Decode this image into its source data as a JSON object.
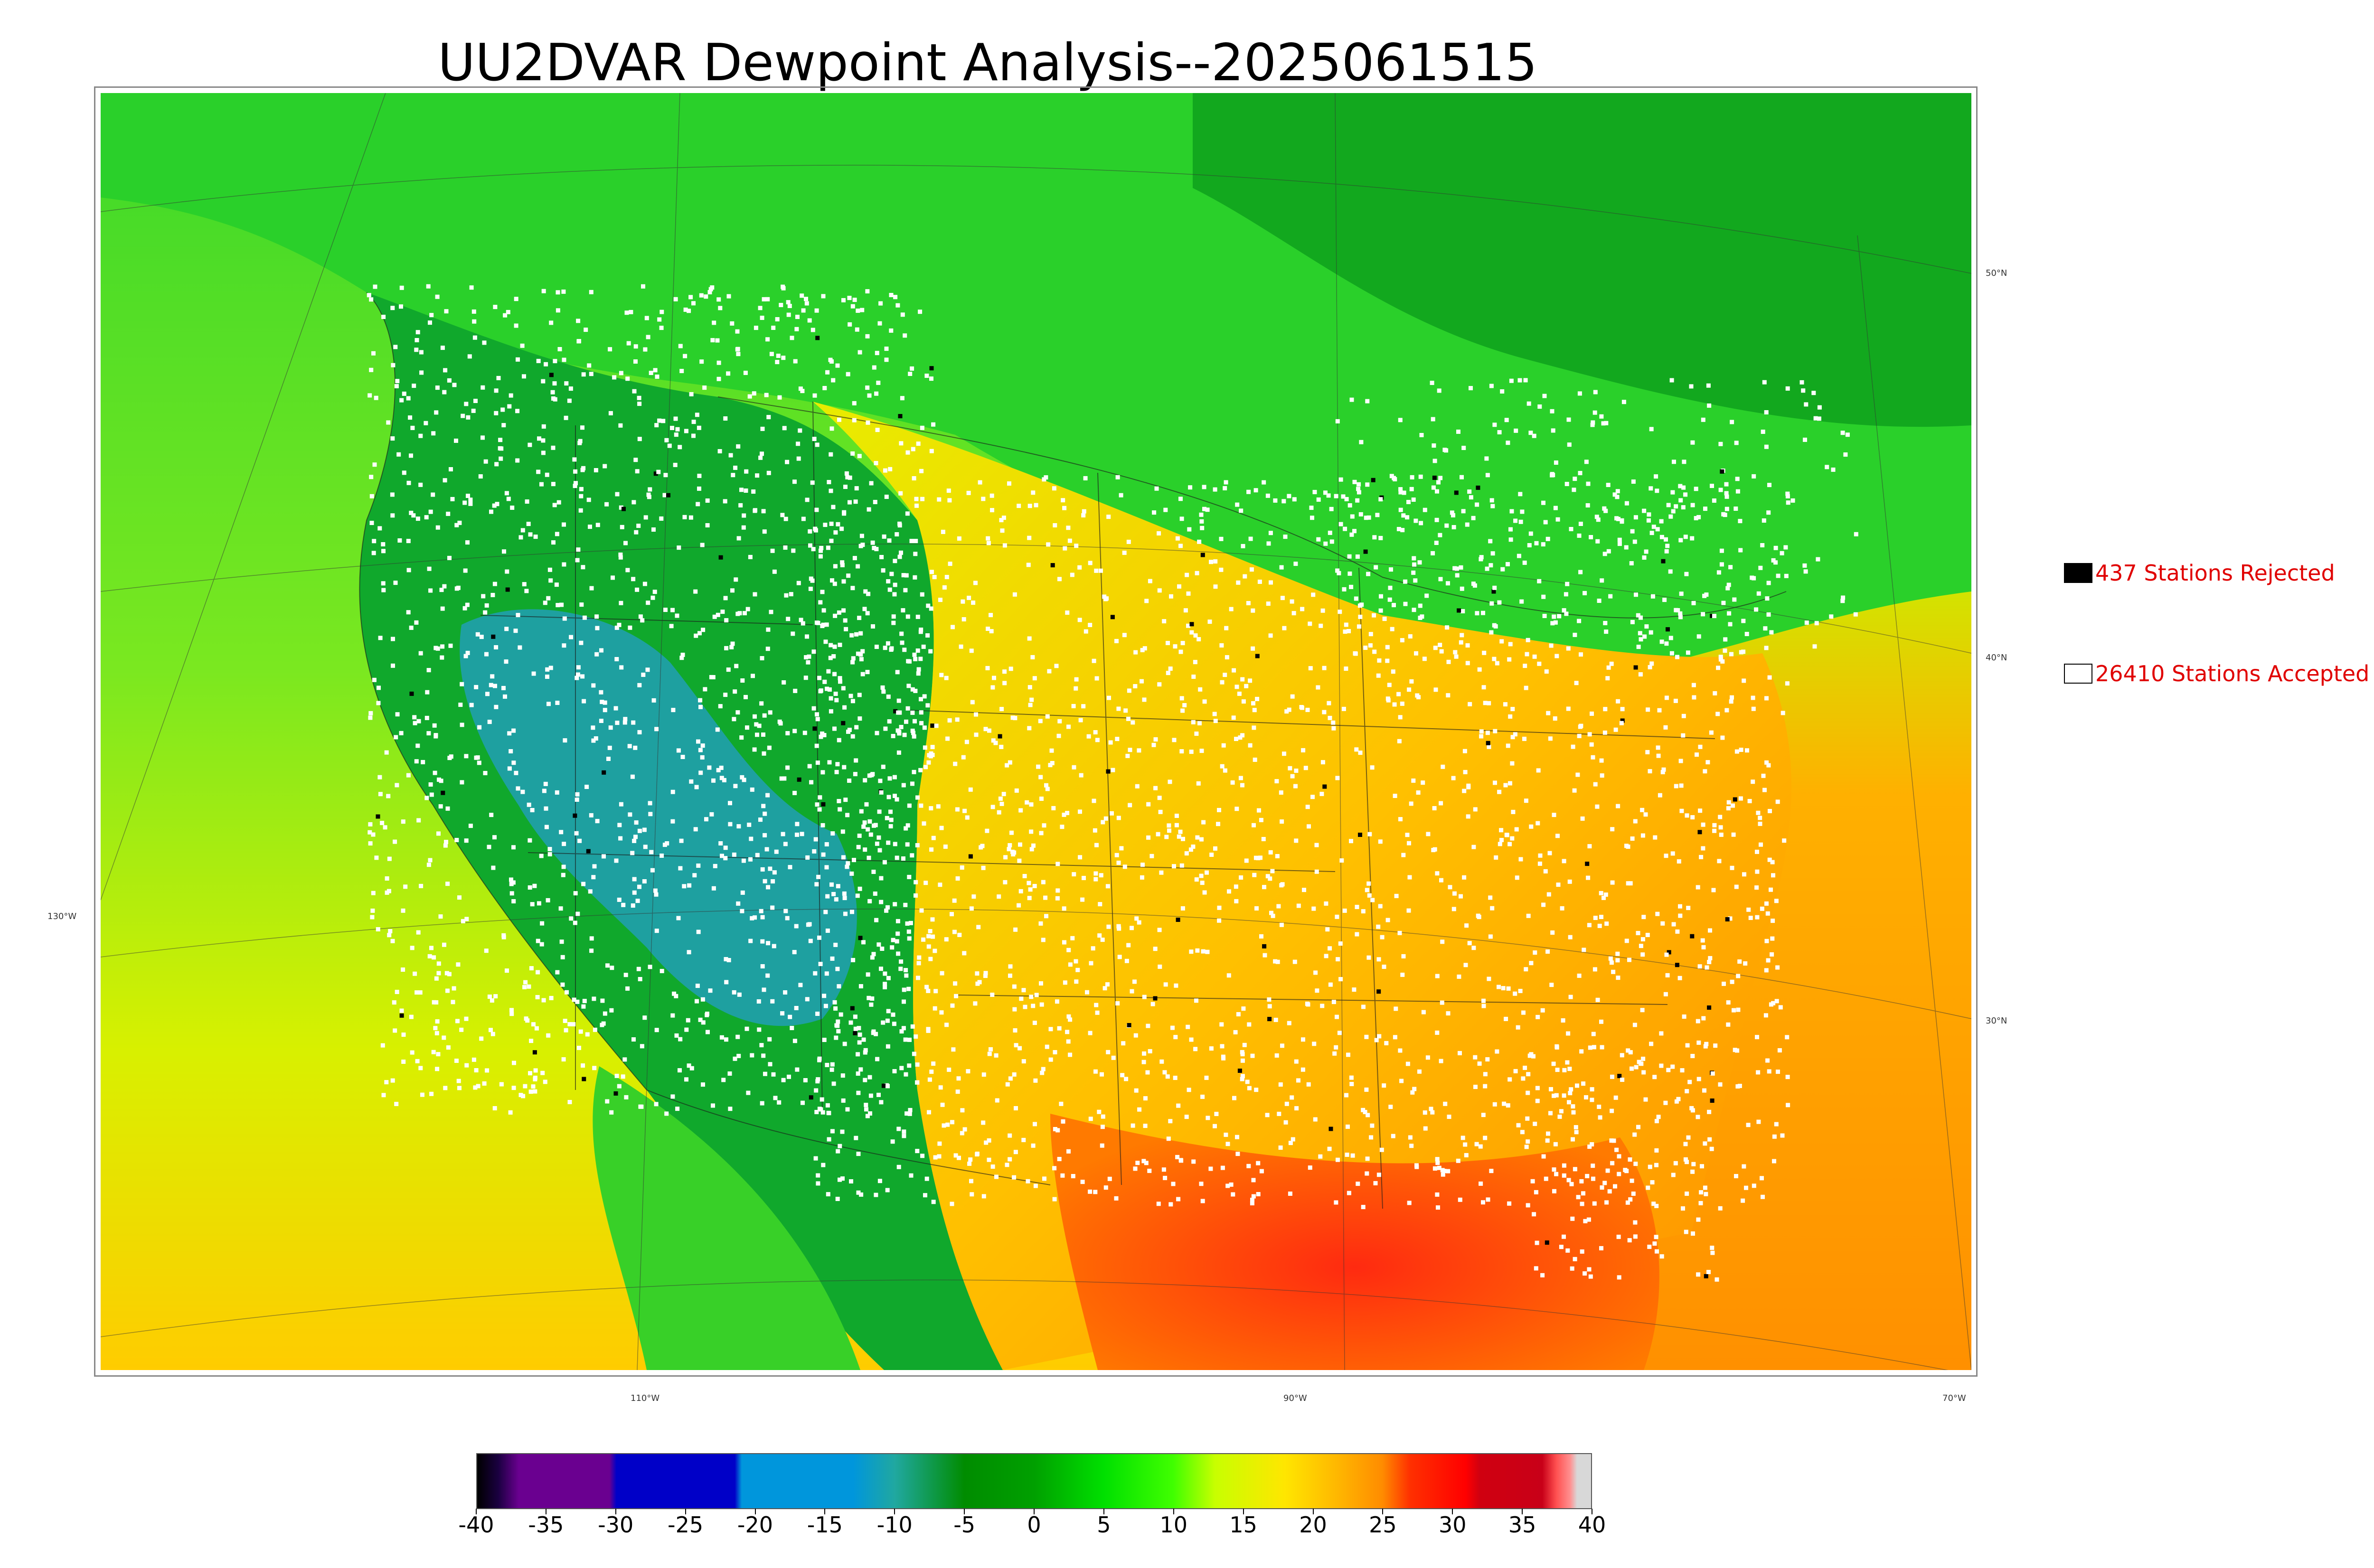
{
  "title": "UU2DVAR Dewpoint Analysis--2025061515",
  "legend": {
    "rejected_label": "437 Stations Rejected",
    "accepted_label": "26410 Stations Accepted",
    "rejected_color": "#000000",
    "accepted_color": "#ffffff",
    "label_color": "#e00000"
  },
  "graticule": {
    "lat_labels": [
      "50°N",
      "40°N",
      "30°N",
      "130°W"
    ],
    "lon_labels": [
      "110°W",
      "90°W",
      "70°W"
    ]
  },
  "colorbar": {
    "tick_labels": [
      "-40",
      "-35",
      "-30",
      "-25",
      "-20",
      "-15",
      "-10",
      "-5",
      "0",
      "5",
      "10",
      "15",
      "20",
      "25",
      "30",
      "35",
      "40"
    ],
    "range": [
      -40,
      40
    ],
    "stops": [
      {
        "v": -40,
        "c": "#000000"
      },
      {
        "v": -38.5,
        "c": "#1a0040"
      },
      {
        "v": -37,
        "c": "#6a0090"
      },
      {
        "v": -30.5,
        "c": "#6a0090"
      },
      {
        "v": -30,
        "c": "#0000c8"
      },
      {
        "v": -21.5,
        "c": "#0000c8"
      },
      {
        "v": -21,
        "c": "#0096dc"
      },
      {
        "v": -13,
        "c": "#0096dc"
      },
      {
        "v": -10,
        "c": "#20a8a0"
      },
      {
        "v": -5,
        "c": "#008c00"
      },
      {
        "v": 0,
        "c": "#00a000"
      },
      {
        "v": 5,
        "c": "#00e000"
      },
      {
        "v": 10,
        "c": "#40ff00"
      },
      {
        "v": 13,
        "c": "#c8ff00"
      },
      {
        "v": 18,
        "c": "#ffe600"
      },
      {
        "v": 22,
        "c": "#ffb400"
      },
      {
        "v": 25,
        "c": "#ff8c00"
      },
      {
        "v": 27,
        "c": "#ff3000"
      },
      {
        "v": 31,
        "c": "#ff0000"
      },
      {
        "v": 32,
        "c": "#d00010"
      },
      {
        "v": 36.5,
        "c": "#c80018"
      },
      {
        "v": 37.5,
        "c": "#ff5050"
      },
      {
        "v": 38.5,
        "c": "#ff9090"
      },
      {
        "v": 39,
        "c": "#d8d8d8"
      },
      {
        "v": 40,
        "c": "#d8d8d8"
      }
    ]
  },
  "field_colors": {
    "ocean_north": "#7cf000",
    "canada": "#1ec81e",
    "west": "#12a82a",
    "basin": "#1aa09a",
    "plains": "#f0d000",
    "southeast": "#ff9a00",
    "gulf": "#ff4a10",
    "ocean_south": "#ffb000",
    "pacific": "#b8f000"
  }
}
